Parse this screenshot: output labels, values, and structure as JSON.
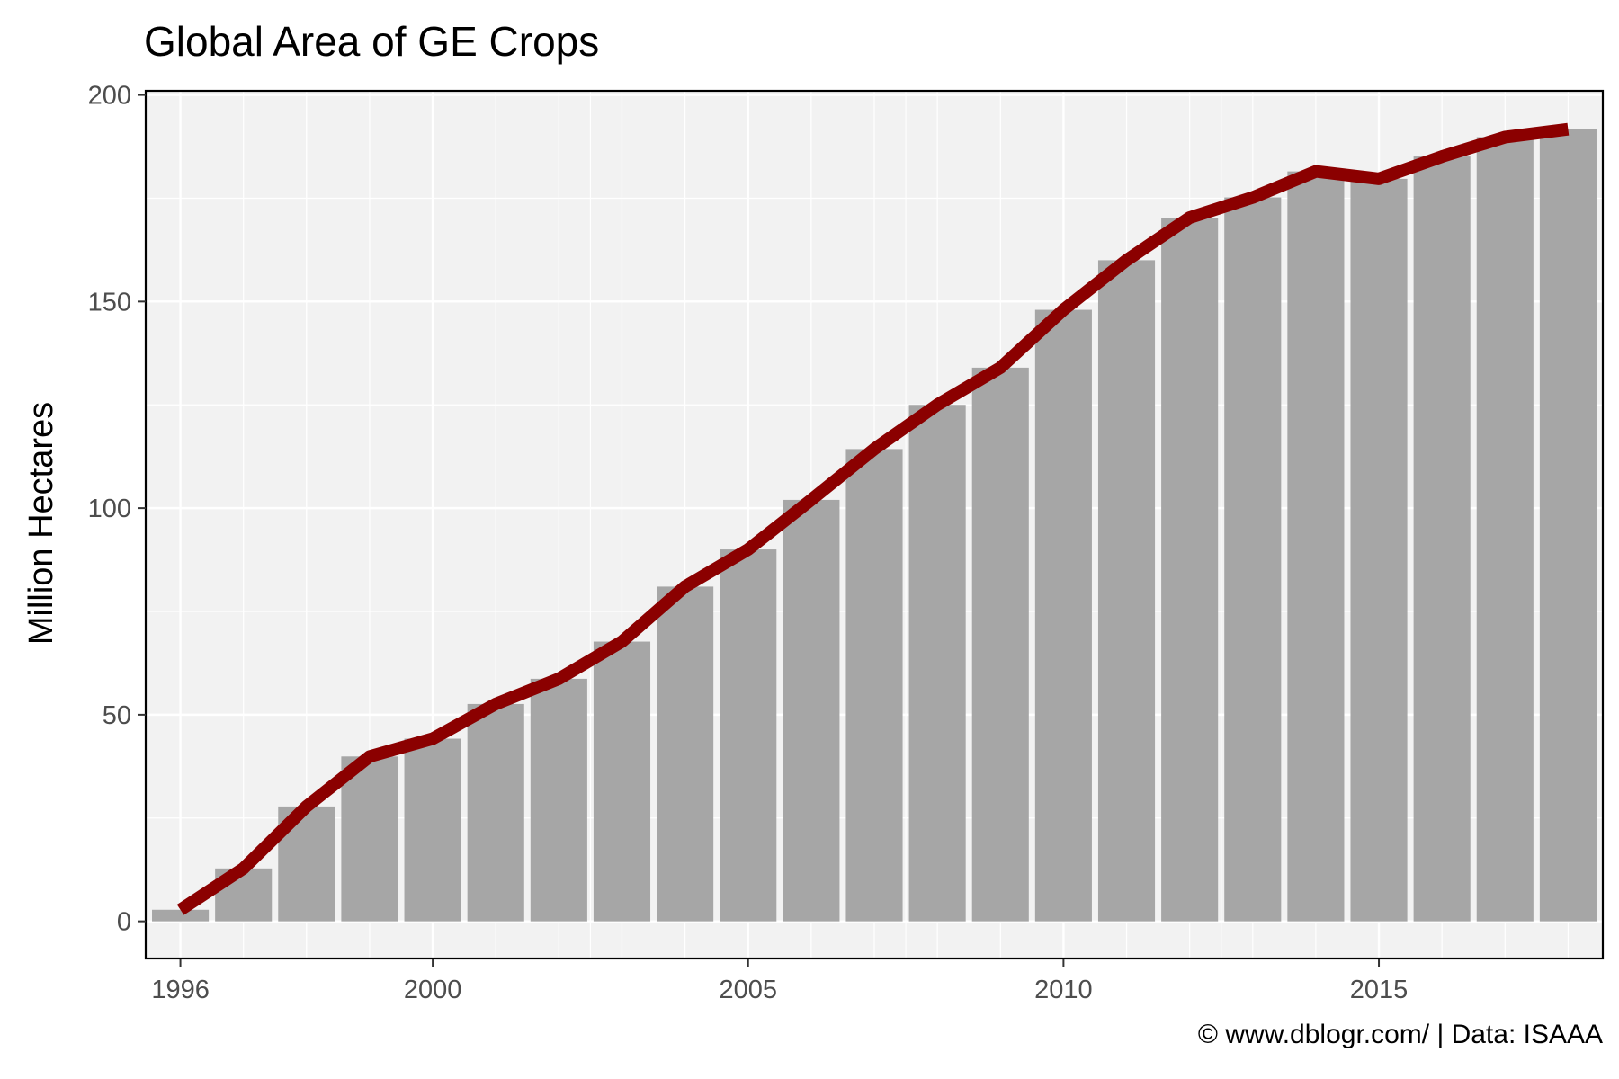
{
  "chart_data": {
    "type": "bar",
    "title": "Global Area of GE Crops",
    "xlabel": "",
    "ylabel": "Million Hectares",
    "caption": "© www.dblogr.com/  |  Data: ISAAA",
    "x": [
      1996,
      1997,
      1998,
      1999,
      2000,
      2001,
      2002,
      2003,
      2004,
      2005,
      2006,
      2007,
      2008,
      2009,
      2010,
      2011,
      2012,
      2013,
      2014,
      2015,
      2016,
      2017,
      2018
    ],
    "values": [
      2.8,
      12.8,
      27.8,
      39.9,
      44.2,
      52.6,
      58.7,
      67.7,
      81.0,
      90.0,
      102.0,
      114.3,
      125.0,
      134.0,
      148.0,
      160.0,
      170.3,
      175.2,
      181.5,
      179.7,
      185.1,
      189.8,
      191.7
    ],
    "overlay_line": {
      "type": "line",
      "color": "#8b0000"
    },
    "bar_color": "#a6a6a6",
    "ylim": [
      -9,
      201
    ],
    "xlim": [
      1995.45,
      2018.55
    ],
    "yticks": [
      0,
      50,
      100,
      150,
      200
    ],
    "xticks": [
      1996,
      2000,
      2005,
      2010,
      2015
    ],
    "grid": true,
    "legend": "none"
  }
}
